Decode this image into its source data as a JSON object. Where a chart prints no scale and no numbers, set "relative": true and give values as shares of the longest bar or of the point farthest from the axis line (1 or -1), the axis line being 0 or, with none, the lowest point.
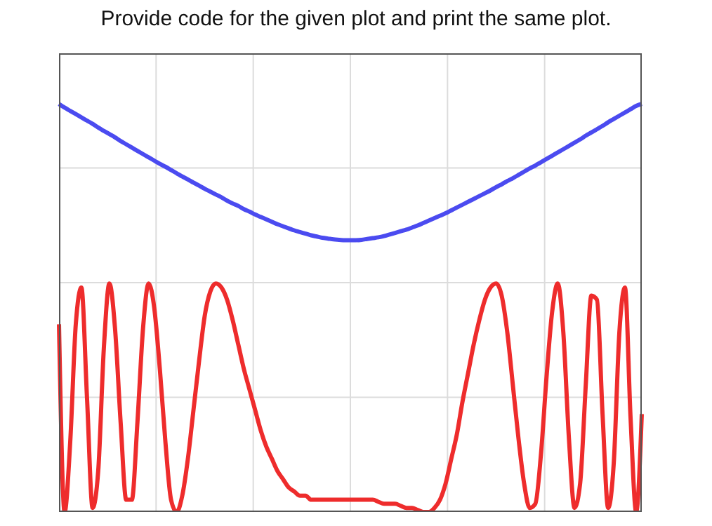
{
  "chart_data": {
    "type": "line",
    "title": "Provide code for the given plot and print the same plot.",
    "relative": true,
    "grid": true,
    "tick_labels": false,
    "line_style": "solid",
    "categories": [
      null,
      null,
      null,
      null,
      null,
      null,
      null,
      null,
      null,
      null,
      null,
      null,
      null,
      null,
      null,
      null,
      null,
      null,
      null,
      null,
      null,
      null,
      null,
      null,
      null,
      null,
      null,
      null,
      null,
      null,
      null,
      null,
      null,
      null,
      null,
      null,
      null,
      null,
      null,
      null,
      null,
      null,
      null,
      null,
      null,
      null,
      null,
      null,
      null,
      null,
      null,
      null,
      null,
      null,
      null,
      null,
      null,
      null,
      null,
      null,
      null,
      null,
      null,
      null,
      null,
      null,
      null,
      null,
      null,
      null,
      null,
      null,
      null,
      null,
      null,
      null,
      null,
      null,
      null,
      null,
      null,
      null,
      null,
      null,
      null,
      null,
      null,
      null,
      null,
      null,
      null,
      null,
      null,
      null,
      null,
      null,
      null,
      null,
      null,
      null,
      null,
      null,
      null,
      null,
      null
    ],
    "series": [
      {
        "color": "#4b4bf0",
        "values": [
          1.0,
          0.991,
          0.983,
          0.975,
          0.967,
          0.959,
          0.951,
          0.942,
          0.934,
          0.926,
          0.918,
          0.909,
          0.901,
          0.893,
          0.885,
          0.877,
          0.869,
          0.861,
          0.853,
          0.846,
          0.838,
          0.83,
          0.822,
          0.815,
          0.807,
          0.8,
          0.792,
          0.785,
          0.778,
          0.771,
          0.763,
          0.756,
          0.75,
          0.742,
          0.736,
          0.729,
          0.723,
          0.717,
          0.711,
          0.705,
          0.7,
          0.695,
          0.69,
          0.686,
          0.682,
          0.678,
          0.675,
          0.672,
          0.67,
          0.668,
          0.667,
          0.666,
          0.666,
          0.666,
          0.667,
          0.669,
          0.671,
          0.673,
          0.676,
          0.68,
          0.684,
          0.688,
          0.692,
          0.697,
          0.702,
          0.708,
          0.714,
          0.72,
          0.726,
          0.732,
          0.739,
          0.746,
          0.753,
          0.76,
          0.767,
          0.774,
          0.781,
          0.788,
          0.796,
          0.803,
          0.811,
          0.818,
          0.826,
          0.834,
          0.842,
          0.849,
          0.857,
          0.865,
          0.873,
          0.881,
          0.889,
          0.897,
          0.905,
          0.913,
          0.922,
          0.93,
          0.938,
          0.946,
          0.955,
          0.963,
          0.971,
          0.979,
          0.987,
          0.995,
          1.0
        ]
      },
      {
        "color": "#ee2c2c",
        "values": [
          0.46,
          0,
          0.17,
          0.46,
          0.55,
          0.28,
          0.01,
          0.1,
          0.4,
          0.56,
          0.45,
          0.22,
          0.03,
          0.03,
          0.22,
          0.45,
          0.56,
          0.5,
          0.35,
          0.17,
          0.03,
          0,
          0.04,
          0.13,
          0.25,
          0.37,
          0.48,
          0.54,
          0.56,
          0.55,
          0.52,
          0.47,
          0.41,
          0.35,
          0.3,
          0.25,
          0.2,
          0.16,
          0.13,
          0.1,
          0.08,
          0.06,
          0.05,
          0.04,
          0.04,
          0.03,
          0.03,
          0.03,
          0.03,
          0.03,
          0.03,
          0.03,
          0.03,
          0.03,
          0.03,
          0.03,
          0.03,
          0.025,
          0.02,
          0.02,
          0.02,
          0.015,
          0.01,
          0.01,
          0.005,
          0,
          0,
          0.01,
          0.03,
          0.07,
          0.13,
          0.19,
          0.27,
          0.34,
          0.41,
          0.47,
          0.52,
          0.55,
          0.56,
          0.53,
          0.44,
          0.31,
          0.18,
          0.07,
          0.01,
          0.02,
          0.14,
          0.33,
          0.49,
          0.56,
          0.44,
          0.18,
          0.01,
          0.07,
          0.31,
          0.53,
          0.52,
          0.24,
          0.01,
          0.12,
          0.44,
          0.55,
          0.23,
          0,
          0.24
        ]
      }
    ]
  }
}
